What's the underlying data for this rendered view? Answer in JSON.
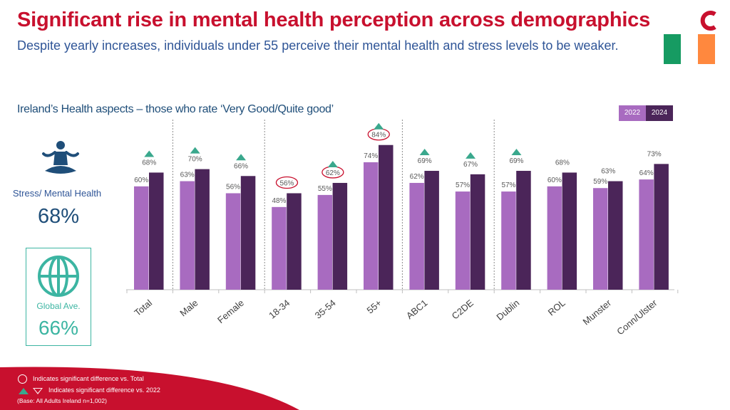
{
  "title": "Significant rise in mental health perception across demographics",
  "subtitle": "Despite yearly increases, individuals under 55 perceive their mental health and stress levels to be weaker.",
  "colors": {
    "brand_red": "#c8102e",
    "bar_2022": "#a86bc0",
    "bar_2024": "#4b2559",
    "teal": "#3aa88d",
    "flag_green": "#169b62",
    "flag_orange": "#ff883e"
  },
  "left_panel": {
    "metric_label": "Stress/ Mental Health",
    "metric_value": "68%",
    "icon": "meditation-icon",
    "global_label": "Global Ave.",
    "global_value": "66%",
    "global_icon": "globe-icon"
  },
  "legend": {
    "label_2022": "2022",
    "label_2024": "2024"
  },
  "chart_data": {
    "type": "bar",
    "title": "Ireland’s Health aspects – those who rate ‘Very Good/Quite good’",
    "categories": [
      "Total",
      "Male",
      "Female",
      "18-34",
      "35-54",
      "55+",
      "ABC1",
      "C2DE",
      "Dublin",
      "ROL",
      "Munster",
      "Conn/Ulster"
    ],
    "series": [
      {
        "name": "2022",
        "values": [
          60,
          63,
          56,
          48,
          55,
          74,
          62,
          57,
          57,
          60,
          59,
          64
        ]
      },
      {
        "name": "2024",
        "values": [
          68,
          70,
          66,
          56,
          62,
          84,
          69,
          67,
          69,
          68,
          63,
          73
        ]
      }
    ],
    "sig_vs_2022": [
      true,
      true,
      true,
      false,
      true,
      true,
      true,
      true,
      true,
      false,
      false,
      false
    ],
    "sig_vs_total": [
      false,
      false,
      false,
      true,
      true,
      true,
      false,
      false,
      false,
      false,
      false,
      false
    ],
    "group_dividers_after": [
      0,
      2,
      5,
      7
    ],
    "ylim": [
      0,
      100
    ],
    "xlabel": "",
    "ylabel": ""
  },
  "footer": {
    "note_circle": "Indicates significant difference vs. Total",
    "note_triangle": "Indicates significant difference vs. 2022",
    "base": "(Base: All Adults Ireland  n=1,002)"
  }
}
